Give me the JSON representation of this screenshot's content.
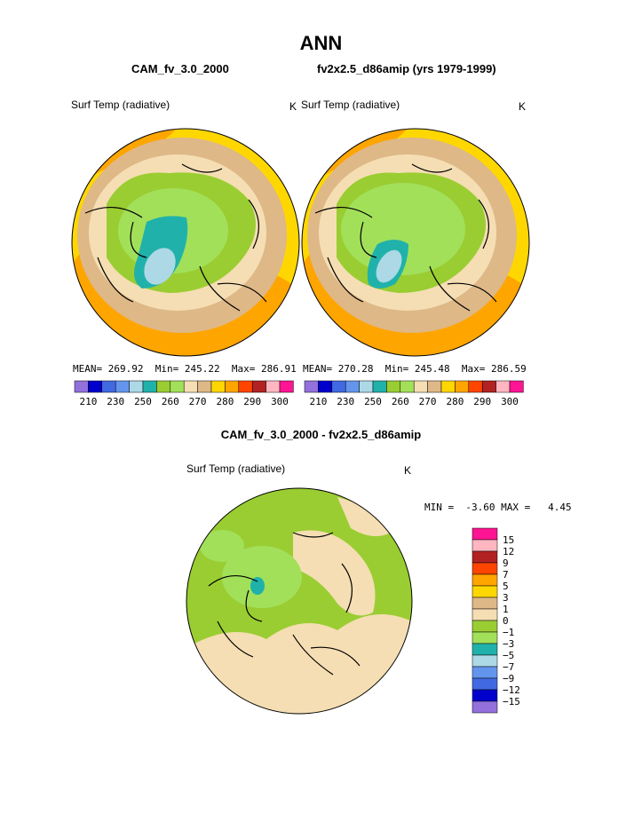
{
  "main_title": "ANN",
  "colors": {
    "panel_palette": [
      "#9370db",
      "#0000cd",
      "#4169e1",
      "#6495ed",
      "#add8e6",
      "#20b2aa",
      "#9acd32",
      "#a2e05a",
      "#f5deb3",
      "#deb887",
      "#ffd700",
      "#ffa500",
      "#ff4500",
      "#b22222",
      "#ffb6c1",
      "#ff1493"
    ],
    "diff_palette": [
      "#9370db",
      "#0000cd",
      "#4169e1",
      "#6495ed",
      "#add8e6",
      "#20b2aa",
      "#a2e05a",
      "#9acd32",
      "#f5deb3",
      "#deb887",
      "#ffd700",
      "#ffa500",
      "#ff4500",
      "#b22222",
      "#ffb6c1",
      "#ff1493"
    ]
  },
  "chart_data": [
    {
      "type": "heatmap",
      "title": "CAM_fv_3.0_2000",
      "field": "Surf Temp (radiative)",
      "units": "K",
      "projection": "north polar stereographic",
      "stats": {
        "mean_label": "MEAN=",
        "mean": "269.92",
        "min_label": "Min=",
        "min": "245.22",
        "max_label": "Max=",
        "max": "286.91"
      },
      "colorbar_ticks": [
        "210",
        "230",
        "250",
        "260",
        "270",
        "280",
        "290",
        "300"
      ]
    },
    {
      "type": "heatmap",
      "title": "fv2x2.5_d86amip (yrs 1979-1999)",
      "field": "Surf Temp (radiative)",
      "units": "K",
      "projection": "north polar stereographic",
      "stats": {
        "mean_label": "MEAN=",
        "mean": "270.28",
        "min_label": "Min=",
        "min": "245.48",
        "max_label": "Max=",
        "max": "286.59"
      },
      "colorbar_ticks": [
        "210",
        "230",
        "250",
        "260",
        "270",
        "280",
        "290",
        "300"
      ]
    },
    {
      "type": "heatmap",
      "title": "CAM_fv_3.0_2000 - fv2x2.5_d86amip",
      "field": "Surf Temp (radiative)",
      "units": "K",
      "projection": "north polar stereographic",
      "stats": {
        "min_label": "MIN =",
        "min": "-3.60",
        "max_label": "MAX =",
        "max": "4.45"
      },
      "colorbar_ticks": [
        "15",
        "12",
        "9",
        "7",
        "5",
        "3",
        "1",
        "0",
        "−1",
        "−3",
        "−5",
        "−7",
        "−9",
        "−12",
        "−15"
      ]
    }
  ]
}
